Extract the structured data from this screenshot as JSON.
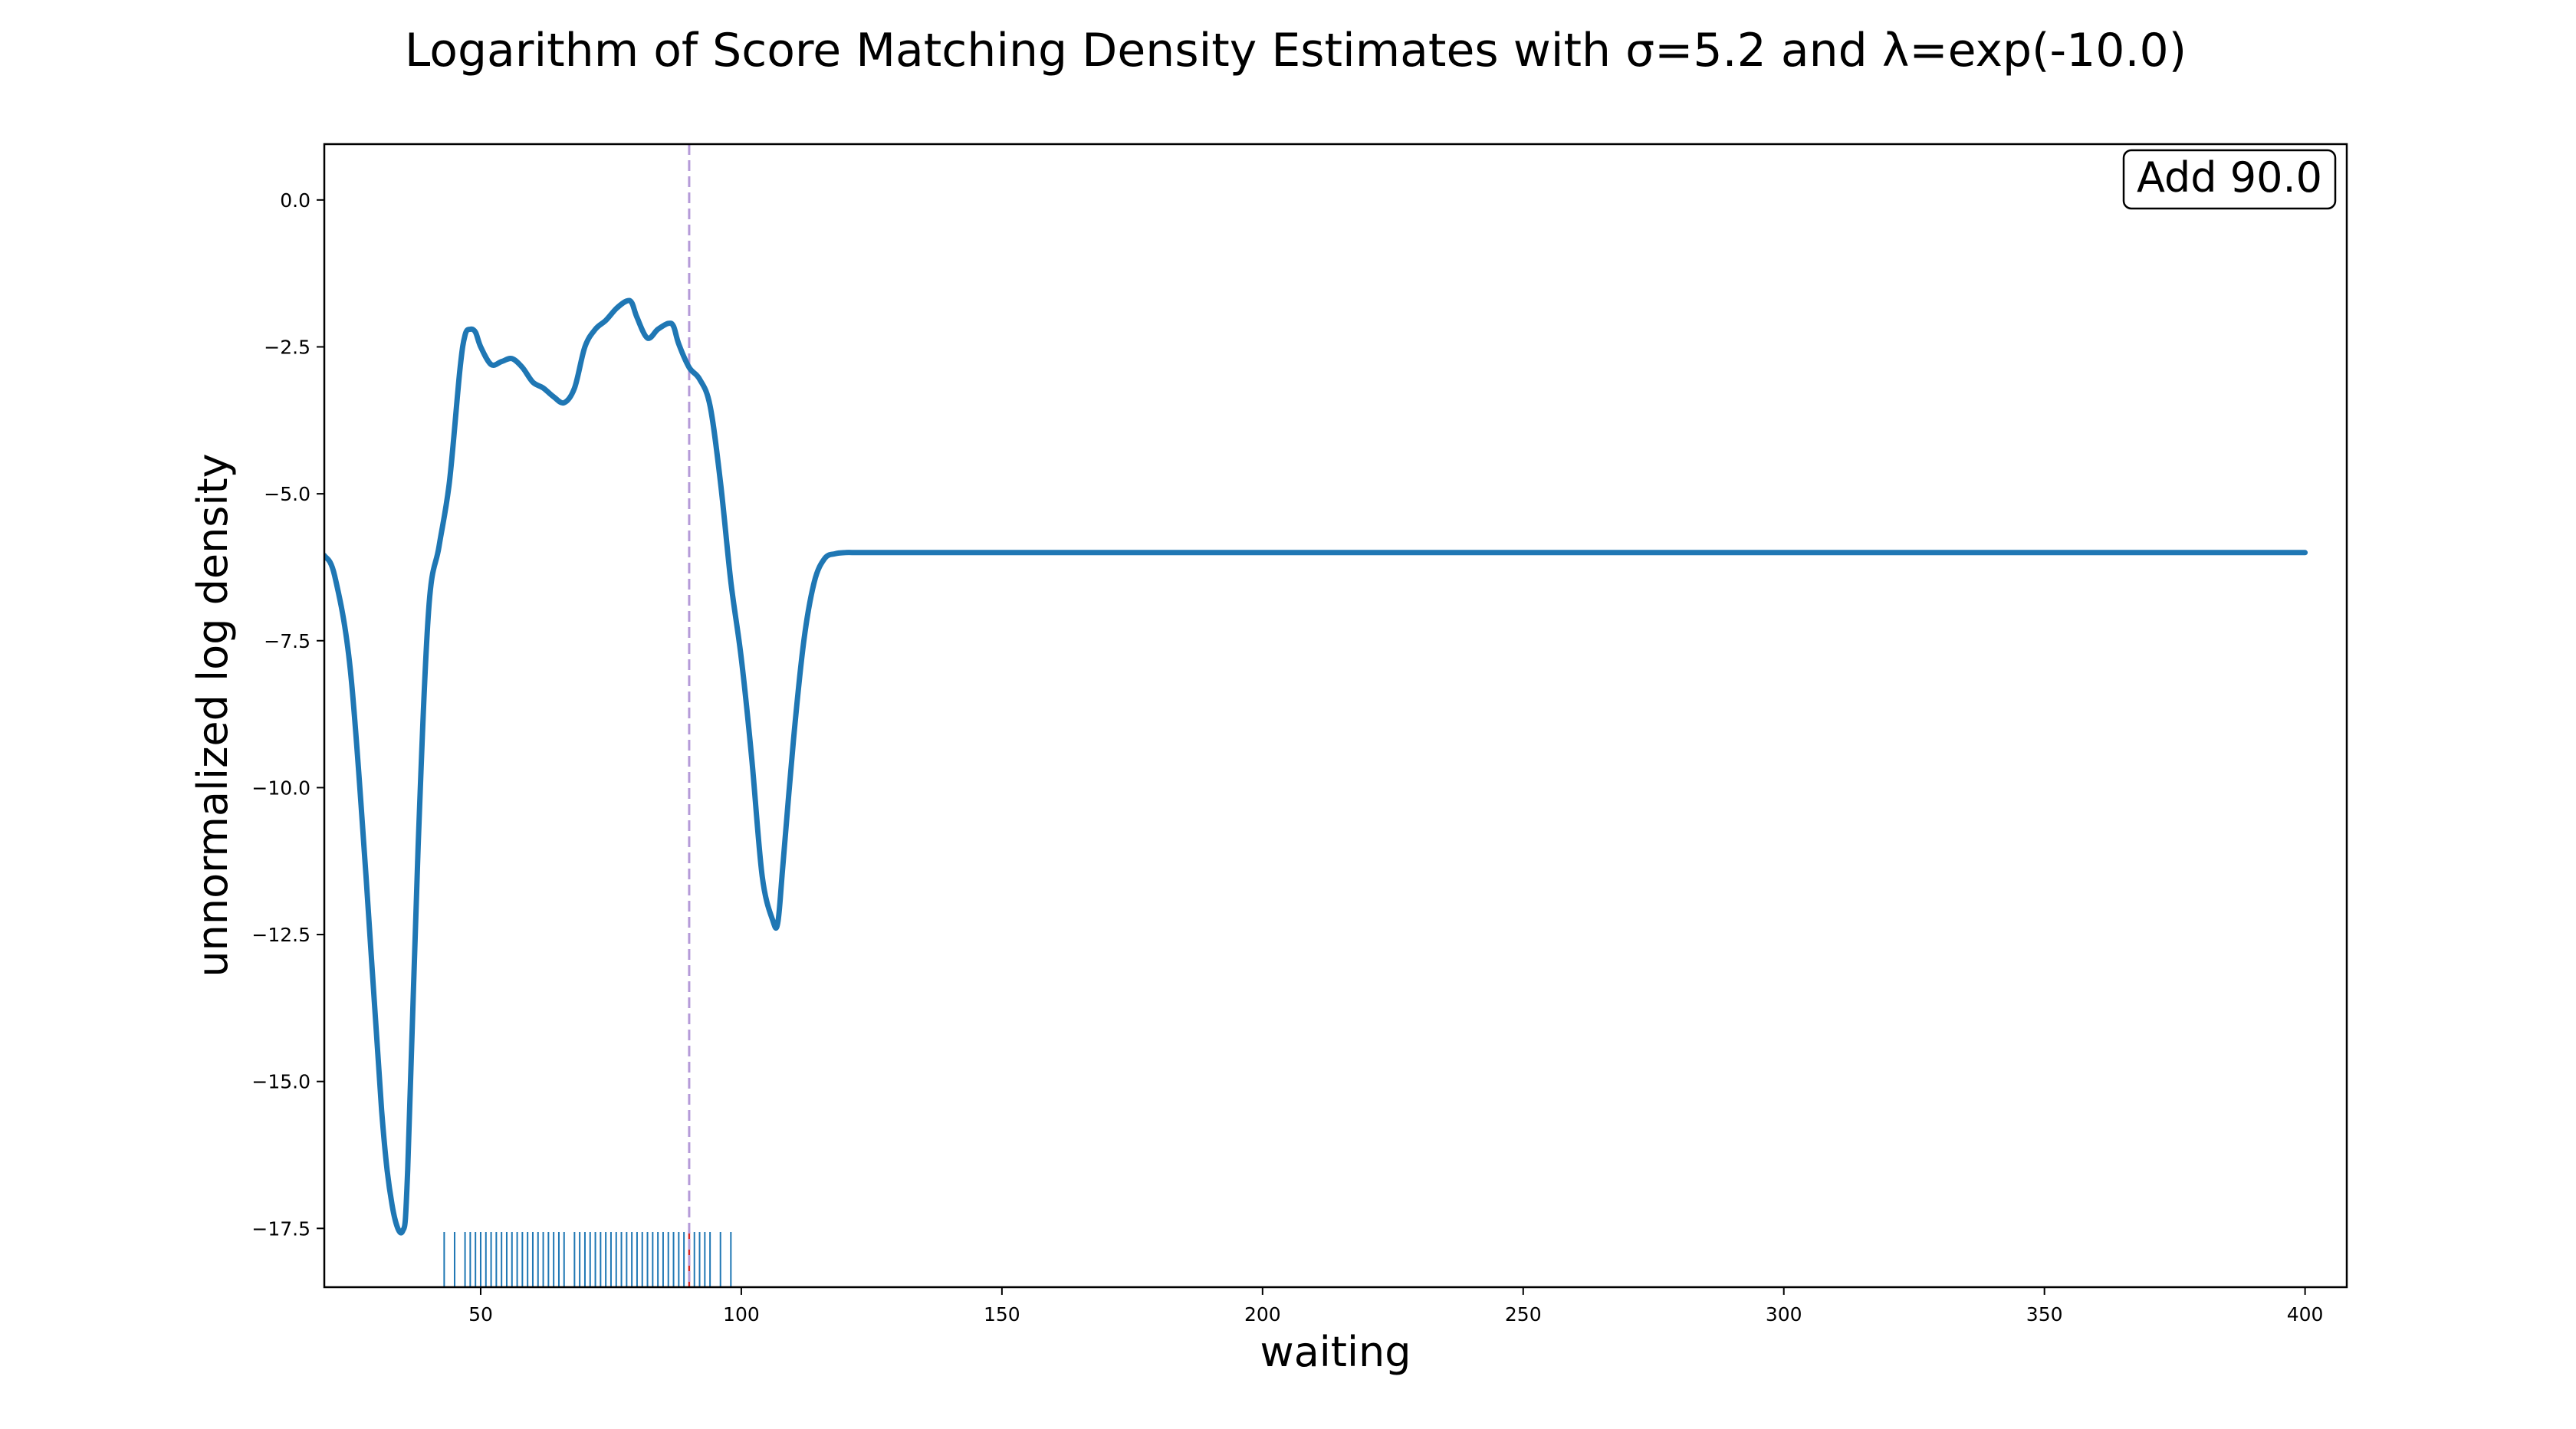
{
  "chart_data": {
    "type": "line",
    "title": "Logarithm of Score Matching Density Estimates with σ=5.2 and λ=exp(-10.0)",
    "xlabel": "waiting",
    "ylabel": "unnormalized log density",
    "xlim": [
      20,
      408
    ],
    "ylim": [
      -18.5,
      0.95
    ],
    "xticks": [
      50,
      100,
      150,
      200,
      250,
      300,
      350,
      400
    ],
    "xtick_labels": [
      "50",
      "100",
      "150",
      "200",
      "250",
      "300",
      "350",
      "400"
    ],
    "yticks": [
      0.0,
      -2.5,
      -5.0,
      -7.5,
      -10.0,
      -12.5,
      -15.0,
      -17.5
    ],
    "ytick_labels": [
      "0.0",
      "−2.5",
      "−5.0",
      "−7.5",
      "−10.0",
      "−12.5",
      "−15.0",
      "−17.5"
    ],
    "grid": false,
    "annotation": "Add 90.0",
    "annotation_position": "top-right",
    "vline_x": 90.0,
    "colors": {
      "line": "#1f77b4",
      "vline": "#b59ad8",
      "rug": "#1f77b4",
      "rug_highlight": "#d62728"
    },
    "series": [
      {
        "x": [
          20,
          22,
          25,
          28,
          31,
          33,
          35,
          36,
          38,
          40,
          42,
          44,
          46,
          47,
          48,
          49,
          50,
          52,
          54,
          56,
          58,
          60,
          62,
          64,
          66,
          68,
          70,
          72,
          74,
          76,
          78,
          79,
          80,
          82,
          84,
          86,
          87,
          88,
          90,
          92,
          94,
          96,
          98,
          100,
          102,
          104,
          106,
          107,
          108,
          110,
          112,
          114,
          116,
          118,
          120,
          122,
          125,
          130,
          140,
          150,
          200,
          250,
          300,
          350,
          400
        ],
        "y": [
          -6.05,
          -6.4,
          -8.0,
          -11.5,
          -15.5,
          -17.1,
          -17.55,
          -16.5,
          -11.0,
          -7.0,
          -5.9,
          -4.8,
          -2.9,
          -2.3,
          -2.2,
          -2.25,
          -2.5,
          -2.8,
          -2.75,
          -2.7,
          -2.85,
          -3.1,
          -3.2,
          -3.35,
          -3.45,
          -3.2,
          -2.5,
          -2.2,
          -2.05,
          -1.85,
          -1.72,
          -1.75,
          -2.0,
          -2.35,
          -2.2,
          -2.1,
          -2.15,
          -2.45,
          -2.85,
          -3.05,
          -3.5,
          -4.8,
          -6.5,
          -7.8,
          -9.5,
          -11.5,
          -12.25,
          -12.3,
          -11.3,
          -9.2,
          -7.5,
          -6.5,
          -6.1,
          -6.02,
          -6.0,
          -6.0,
          -6.0,
          -6.0,
          -6.0,
          -6.0,
          -6.0,
          -6.0,
          -6.0,
          -6.0,
          -6.0
        ]
      }
    ],
    "rug_x": [
      43,
      45,
      47,
      48,
      49,
      50,
      51,
      52,
      53,
      54,
      55,
      56,
      57,
      58,
      59,
      60,
      61,
      62,
      63,
      64,
      65,
      66,
      68,
      69,
      70,
      71,
      72,
      73,
      74,
      75,
      76,
      77,
      78,
      79,
      80,
      81,
      82,
      83,
      84,
      85,
      86,
      87,
      88,
      89,
      90,
      91,
      92,
      93,
      94,
      96,
      98
    ],
    "rug_highlight_x": 90
  }
}
